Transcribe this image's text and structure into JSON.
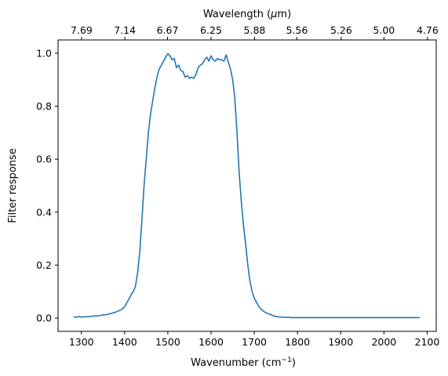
{
  "chart_data": {
    "type": "line",
    "xlabel": "Wavenumber (cm",
    "xlabel_sup": "−1",
    "xlabel_end": ")",
    "ylabel": "Filter response",
    "top_xlabel": "Wavelength (",
    "top_xlabel_mu": "μ",
    "top_xlabel_end": "m)",
    "xlim": [
      1246,
      2121
    ],
    "ylim": [
      -0.05,
      1.05
    ],
    "x_ticks": [
      1300,
      1400,
      1500,
      1600,
      1700,
      1800,
      1900,
      2000,
      2100
    ],
    "x_tick_labels": [
      "1300",
      "1400",
      "1500",
      "1600",
      "1700",
      "1800",
      "1900",
      "2000",
      "2100"
    ],
    "y_ticks": [
      0.0,
      0.2,
      0.4,
      0.6,
      0.8,
      1.0
    ],
    "y_tick_labels": [
      "0.0",
      "0.2",
      "0.4",
      "0.6",
      "0.8",
      "1.0"
    ],
    "top_ticks": [
      7.69,
      7.14,
      6.67,
      6.25,
      5.88,
      5.56,
      5.26,
      5.0,
      4.76
    ],
    "top_tick_labels": [
      "7.69",
      "7.14",
      "6.67",
      "6.25",
      "5.88",
      "5.56",
      "5.26",
      "5.00",
      "4.76"
    ],
    "grid": false,
    "line_color": "#1f77b4",
    "series": [
      {
        "x": [
          1282,
          1288,
          1294,
          1300,
          1310,
          1320,
          1330,
          1340,
          1350,
          1360,
          1370,
          1380,
          1390,
          1395,
          1400,
          1405,
          1410,
          1415,
          1420,
          1425,
          1430,
          1435,
          1440,
          1445,
          1450,
          1455,
          1460,
          1465,
          1470,
          1475,
          1480,
          1485,
          1490,
          1495,
          1500,
          1505,
          1510,
          1515,
          1520,
          1525,
          1530,
          1535,
          1540,
          1545,
          1550,
          1555,
          1560,
          1565,
          1570,
          1575,
          1580,
          1585,
          1590,
          1595,
          1600,
          1605,
          1610,
          1615,
          1620,
          1625,
          1630,
          1635,
          1640,
          1645,
          1650,
          1655,
          1660,
          1665,
          1670,
          1675,
          1680,
          1685,
          1690,
          1695,
          1700,
          1705,
          1710,
          1715,
          1720,
          1725,
          1730,
          1735,
          1740,
          1745,
          1750,
          1755,
          1760,
          1765,
          1770,
          1775,
          1780,
          1785,
          1790,
          1795,
          1800,
          1810,
          1820,
          1830,
          1840,
          1850,
          1860,
          1880,
          1900,
          1920,
          1940,
          1960,
          1980,
          2000,
          2020,
          2040,
          2060,
          2083
        ],
        "y": [
          0.005,
          0.003,
          0.006,
          0.004,
          0.005,
          0.006,
          0.008,
          0.009,
          0.012,
          0.014,
          0.018,
          0.023,
          0.03,
          0.035,
          0.043,
          0.058,
          0.072,
          0.088,
          0.1,
          0.12,
          0.17,
          0.25,
          0.37,
          0.5,
          0.6,
          0.7,
          0.77,
          0.82,
          0.87,
          0.91,
          0.94,
          0.955,
          0.97,
          0.985,
          0.998,
          0.99,
          0.975,
          0.98,
          0.945,
          0.955,
          0.935,
          0.93,
          0.91,
          0.915,
          0.905,
          0.91,
          0.905,
          0.92,
          0.945,
          0.955,
          0.96,
          0.975,
          0.985,
          0.97,
          0.99,
          0.975,
          0.97,
          0.98,
          0.975,
          0.975,
          0.97,
          0.994,
          0.965,
          0.94,
          0.9,
          0.83,
          0.7,
          0.55,
          0.44,
          0.35,
          0.28,
          0.2,
          0.14,
          0.1,
          0.075,
          0.06,
          0.045,
          0.035,
          0.028,
          0.022,
          0.018,
          0.015,
          0.012,
          0.008,
          0.006,
          0.005,
          0.004,
          0.004,
          0.003,
          0.003,
          0.003,
          0.002,
          0.002,
          0.002,
          0.002,
          0.002,
          0.002,
          0.002,
          0.002,
          0.002,
          0.002,
          0.002,
          0.002,
          0.002,
          0.002,
          0.002,
          0.002,
          0.002,
          0.002,
          0.002,
          0.002,
          0.002
        ]
      }
    ]
  }
}
